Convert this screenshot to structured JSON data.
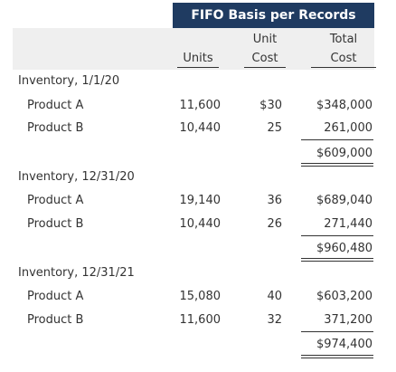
{
  "table_title": "FIFO Basis per Records",
  "headers": {
    "units": "Units",
    "unit_cost_top": "Unit",
    "unit_cost_bottom": "Cost",
    "total_cost_top": "Total",
    "total_cost_bottom": "Cost"
  },
  "sections": [
    {
      "label": "Inventory, 1/1/20",
      "rows": [
        {
          "product": "Product A",
          "units": "11,600",
          "unit_cost": "$30",
          "total": "$348,000"
        },
        {
          "product": "Product B",
          "units": "10,440",
          "unit_cost": "25",
          "total": "261,000"
        }
      ],
      "subtotal": "$609,000"
    },
    {
      "label": "Inventory, 12/31/20",
      "rows": [
        {
          "product": "Product A",
          "units": "19,140",
          "unit_cost": "36",
          "total": "$689,040"
        },
        {
          "product": "Product B",
          "units": "10,440",
          "unit_cost": "26",
          "total": "271,440"
        }
      ],
      "subtotal": "$960,480"
    },
    {
      "label": "Inventory, 12/31/21",
      "rows": [
        {
          "product": "Product A",
          "units": "15,080",
          "unit_cost": "40",
          "total": "$603,200"
        },
        {
          "product": "Product B",
          "units": "11,600",
          "unit_cost": "32",
          "total": "371,200"
        }
      ],
      "subtotal": "$974,400"
    }
  ]
}
